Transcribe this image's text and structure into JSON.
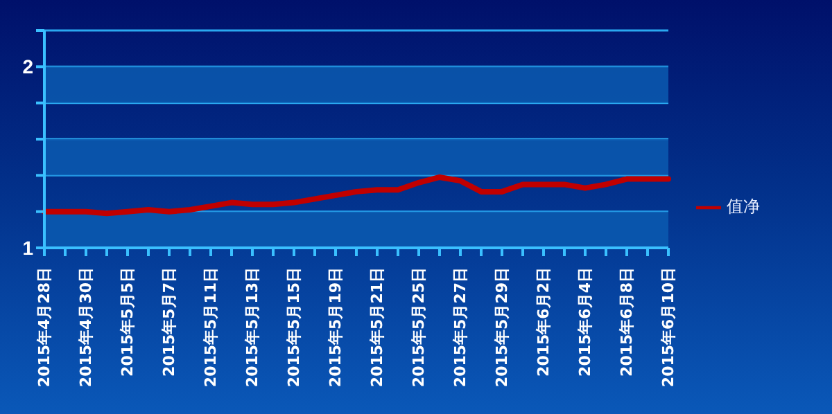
{
  "chart_data": {
    "type": "line",
    "categories": [
      "2015年4月28日",
      null,
      "2015年4月30日",
      null,
      "2015年5月5日",
      null,
      "2015年5月7日",
      null,
      "2015年5月11日",
      null,
      "2015年5月13日",
      null,
      "2015年5月15日",
      null,
      "2015年5月19日",
      null,
      "2015年5月21日",
      null,
      "2015年5月25日",
      null,
      "2015年5月27日",
      null,
      "2015年5月29日",
      null,
      "2015年6月2日",
      null,
      "2015年6月4日",
      null,
      "2015年6月8日",
      null,
      "2015年6月10日"
    ],
    "series": [
      {
        "name": "值净",
        "color": "#c00000",
        "values": [
          1.2,
          1.2,
          1.2,
          1.19,
          1.2,
          1.21,
          1.2,
          1.21,
          1.23,
          1.25,
          1.24,
          1.24,
          1.25,
          1.27,
          1.29,
          1.31,
          1.32,
          1.32,
          1.36,
          1.39,
          1.37,
          1.31,
          1.31,
          1.35,
          1.35,
          1.35,
          1.33,
          1.35,
          1.38,
          1.38,
          1.38
        ]
      }
    ],
    "ylim": [
      1,
      2.2
    ],
    "yticks": [
      1,
      {
        "value": 1.2,
        "label": null
      },
      {
        "value": 1.4,
        "label": null
      },
      {
        "value": 1.6,
        "label": null
      },
      {
        "value": 1.8,
        "label": null
      },
      2,
      {
        "value": 2.2,
        "label": null
      }
    ],
    "bands": [
      {
        "axis": "y",
        "from": 1,
        "to": 1.2,
        "color": "#0a5ab0"
      },
      {
        "axis": "y",
        "from": 1.4,
        "to": 1.6,
        "color": "#0a5ab0"
      },
      {
        "axis": "y",
        "from": 1.8,
        "to": 2,
        "color": "#0a5ab0"
      }
    ],
    "grid": "y",
    "legend": "right",
    "marker": "none",
    "line_style": "solid"
  }
}
